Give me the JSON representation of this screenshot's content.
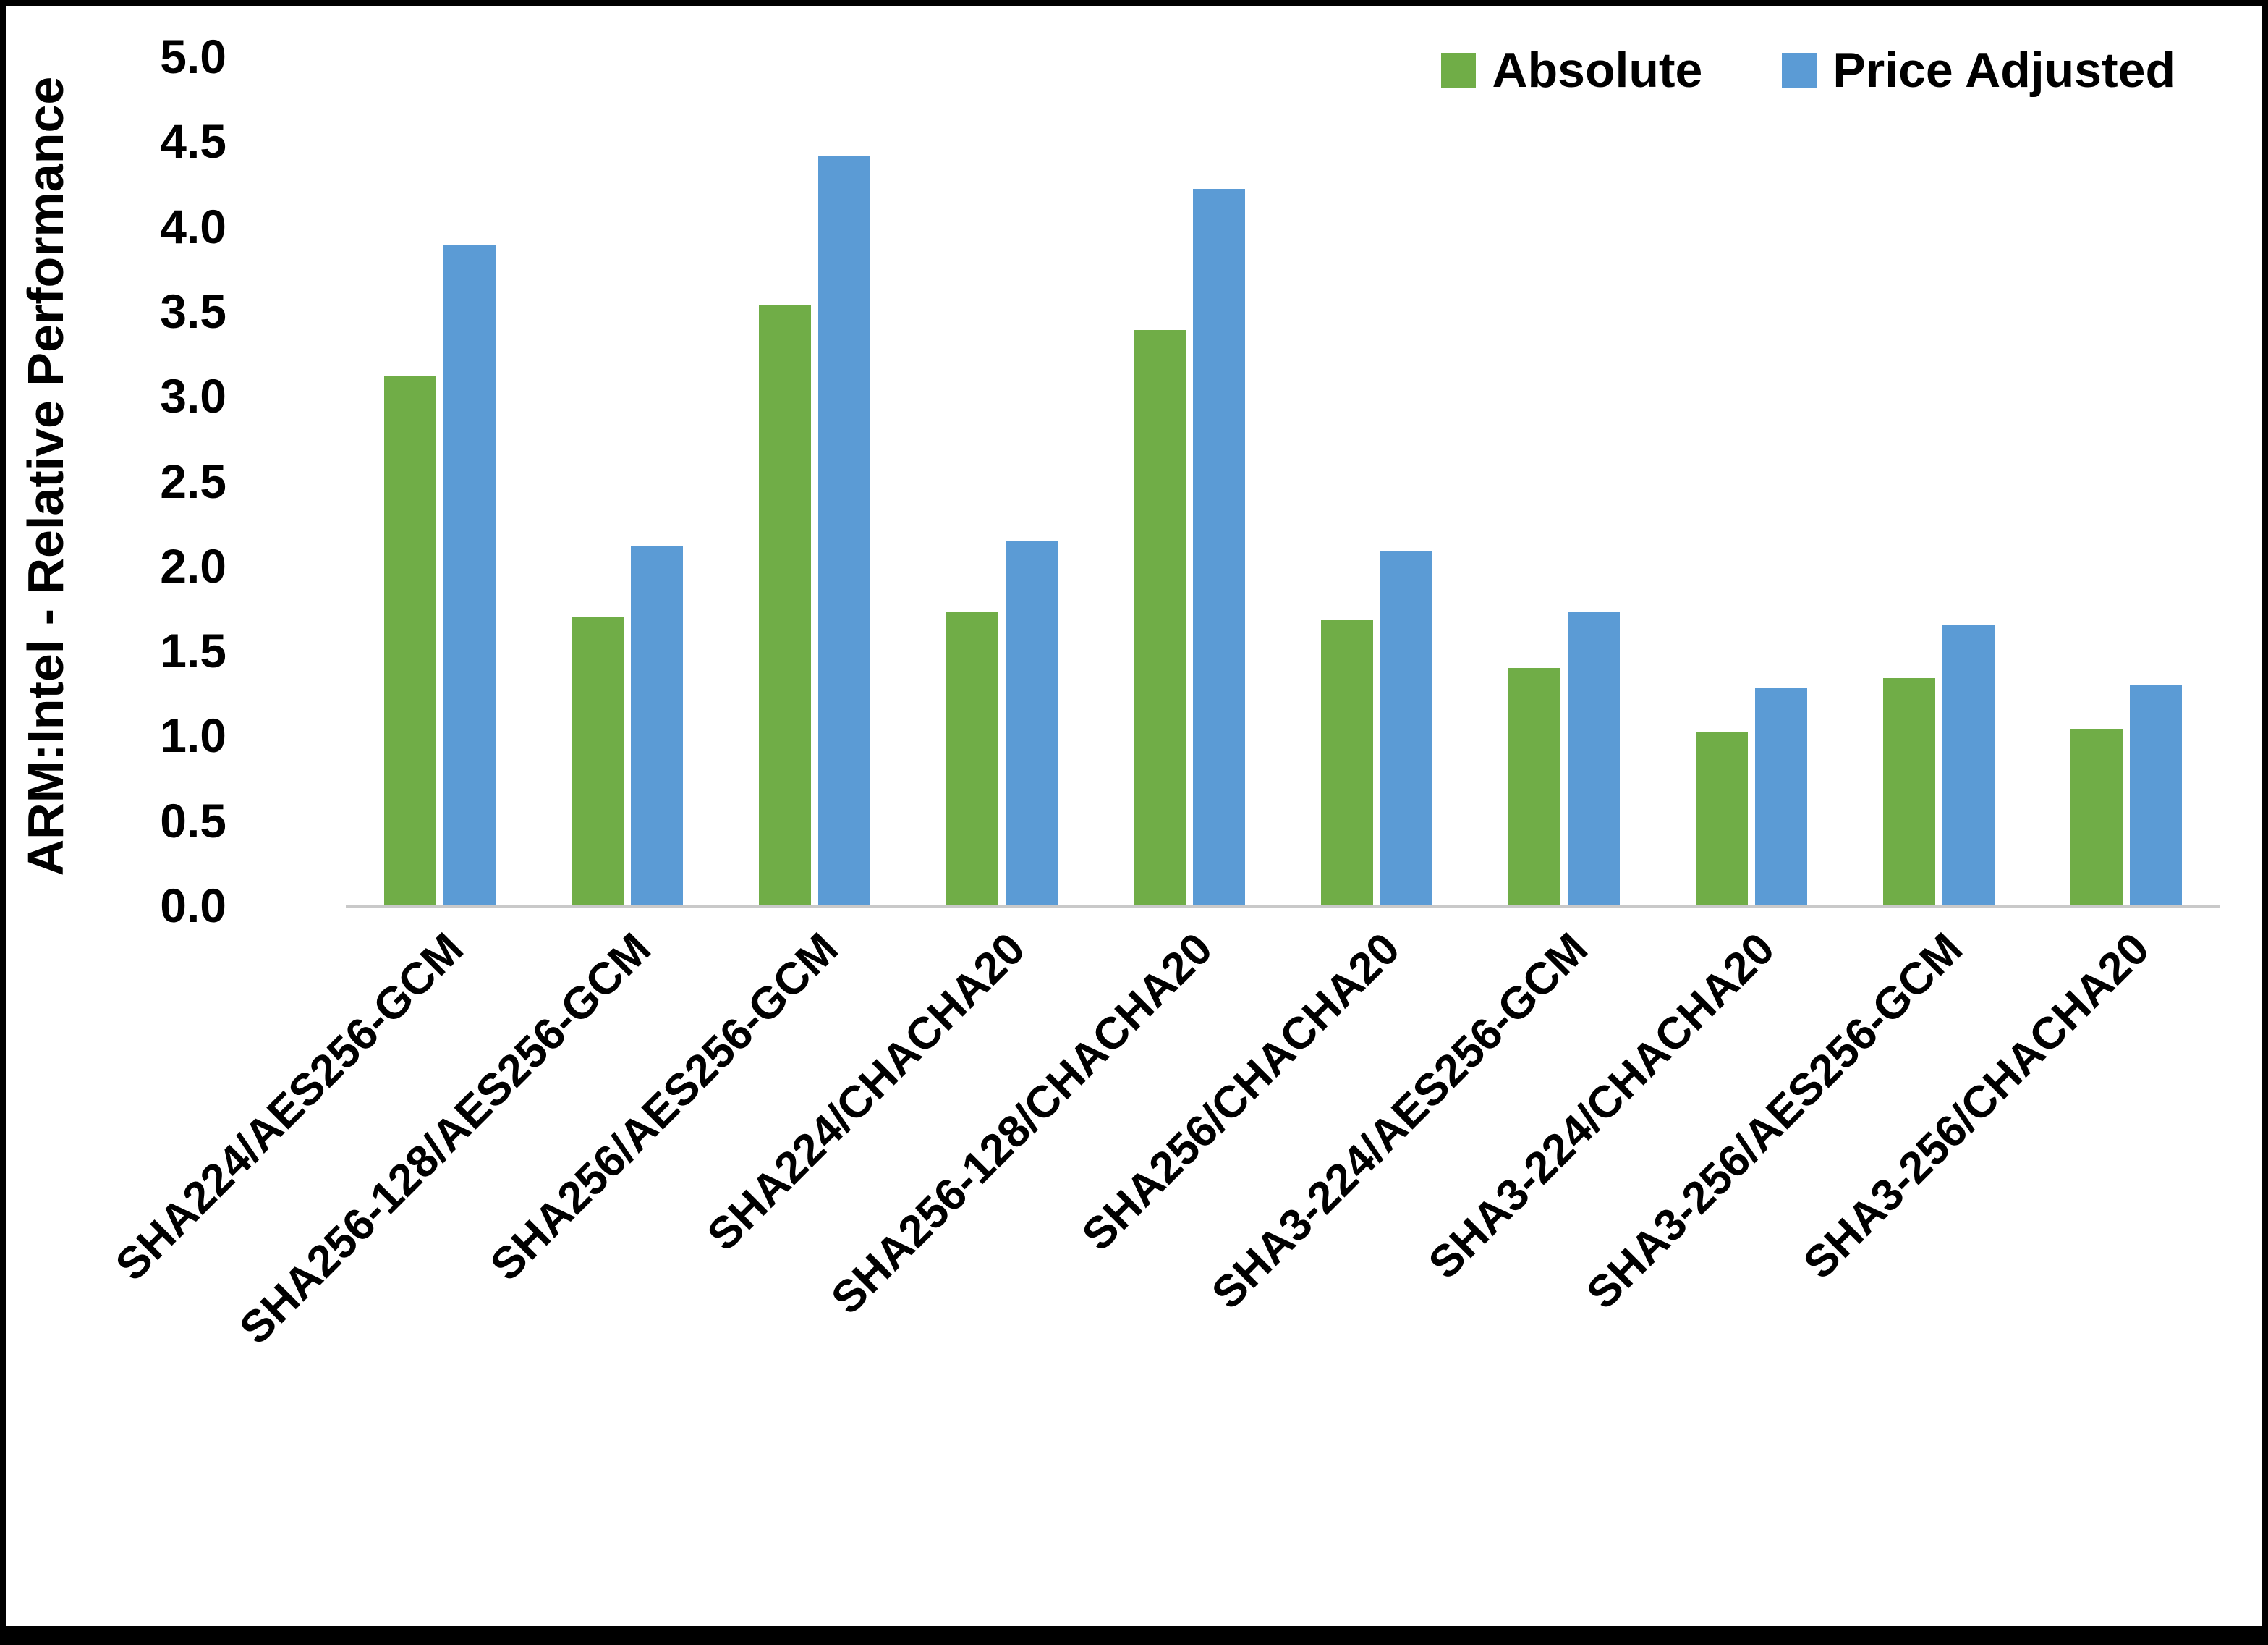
{
  "chart_data": {
    "type": "bar",
    "title": "",
    "xlabel": "",
    "ylabel": "ARM:Intel - Relative Performance",
    "ylim": [
      0,
      5
    ],
    "ytick_step": 0.5,
    "yticks": [
      "0.0",
      "0.5",
      "1.0",
      "1.5",
      "2.0",
      "2.5",
      "3.0",
      "3.5",
      "4.0",
      "4.5",
      "5.0"
    ],
    "grid": false,
    "legend_position": "top-right",
    "categories": [
      "SHA224/AES256-GCM",
      "SHA256-128/AES256-GCM",
      "SHA256/AES256-GCM",
      "SHA224/CHACHA20",
      "SHA256-128/CHACHA20",
      "SHA256/CHACHA20",
      "SHA3-224/AES256-GCM",
      "SHA3-224/CHACHA20",
      "SHA3-256/AES256-GCM",
      "SHA3-256/CHACHA20"
    ],
    "series": [
      {
        "name": "Absolute",
        "color": "#70AD47",
        "values": [
          3.12,
          1.7,
          3.54,
          1.73,
          3.39,
          1.68,
          1.4,
          1.02,
          1.34,
          1.04
        ]
      },
      {
        "name": "Price Adjusted",
        "color": "#5B9BD5",
        "values": [
          3.89,
          2.12,
          4.41,
          2.15,
          4.22,
          2.09,
          1.73,
          1.28,
          1.65,
          1.3
        ]
      }
    ]
  },
  "colors": {
    "absolute": "#70AD47",
    "price_adjusted": "#5B9BD5",
    "axis_line": "#c9c9c9",
    "text": "#000000",
    "frame": "#000000"
  }
}
